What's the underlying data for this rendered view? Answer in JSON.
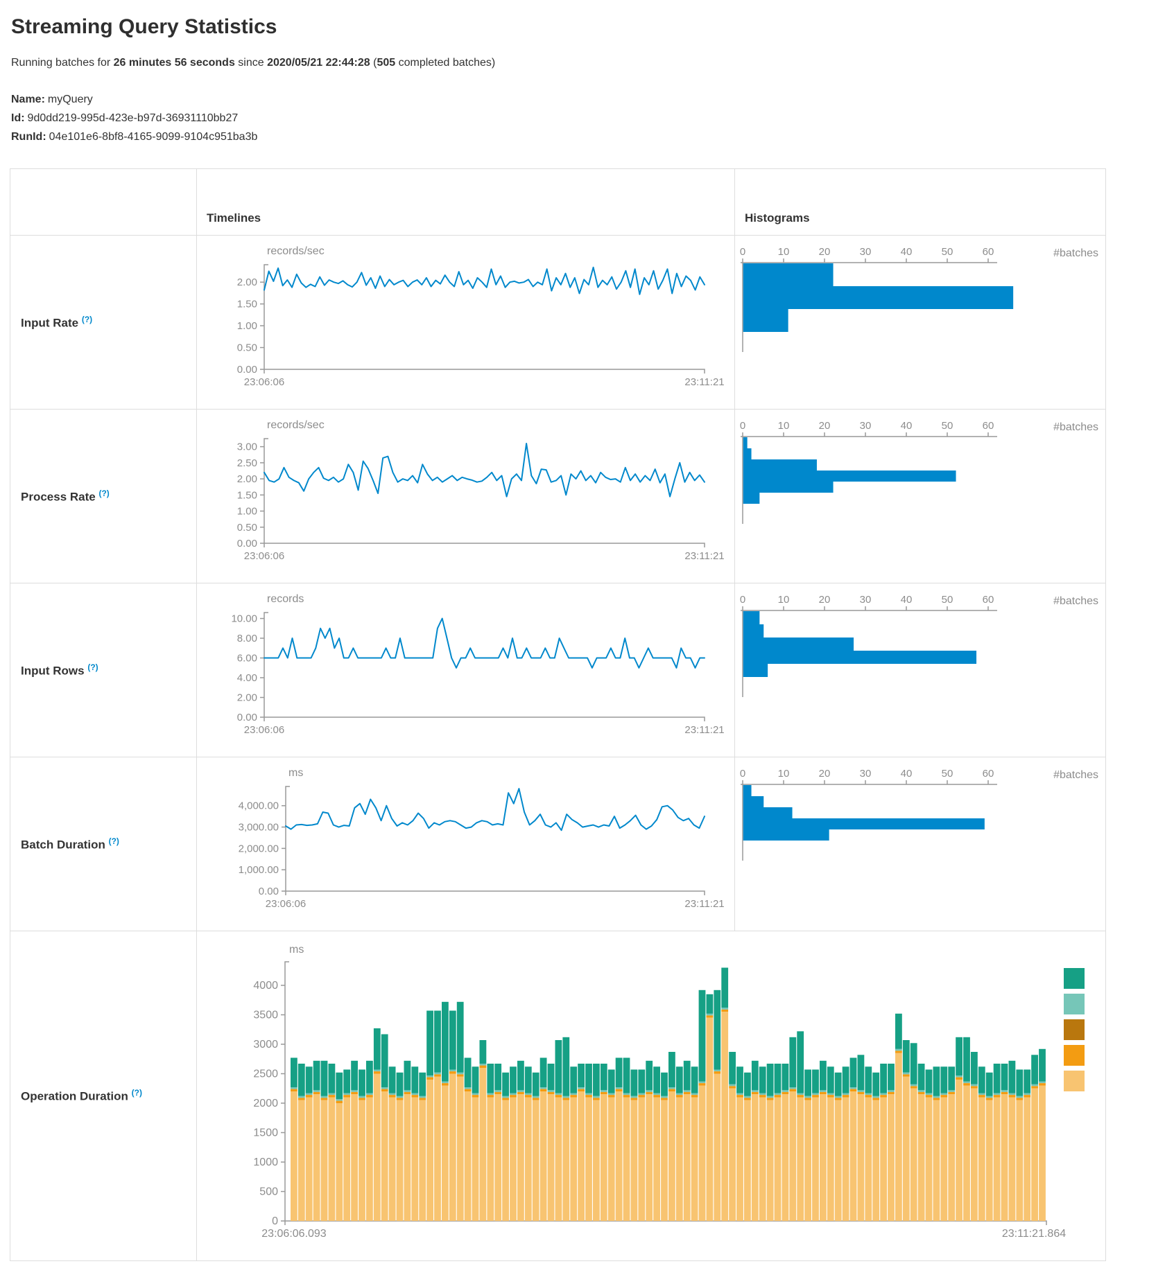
{
  "page": {
    "title": "Streaming Query Statistics",
    "subtitle": {
      "prefix": "Running batches for ",
      "duration": "26 minutes 56 seconds",
      "mid": " since ",
      "start_time": "2020/05/21 22:44:28",
      "paren": " (",
      "completed_batches": "505",
      "suffix": " completed batches)"
    },
    "meta": {
      "name_label": "Name:",
      "name_value": "myQuery",
      "id_label": "Id:",
      "id_value": "9d0dd219-995d-423e-b97d-36931110bb27",
      "runid_label": "RunId:",
      "runid_value": "04e101e6-8bf8-4165-9099-9104c951ba3b"
    }
  },
  "table": {
    "headers": {
      "timelines": "Timelines",
      "histograms": "Histograms"
    },
    "rows": [
      {
        "label": "Input Rate",
        "help": "(?)"
      },
      {
        "label": "Process Rate",
        "help": "(?)"
      },
      {
        "label": "Input Rows",
        "help": "(?)"
      },
      {
        "label": "Batch Duration",
        "help": "(?)"
      },
      {
        "label": "Operation Duration",
        "help": "(?)"
      }
    ]
  },
  "colors": {
    "blue": "#0088cc",
    "axis": "#999999",
    "tick": "#8c8c8c",
    "legend": [
      "#16a085",
      "#76c6b8",
      "#b9770e",
      "#f39c12",
      "#f8c471"
    ]
  },
  "chart_data": [
    {
      "id": "input-rate-timeline",
      "type": "line",
      "ylabel": "records/sec",
      "x_start": "23:06:06",
      "x_end": "23:11:21",
      "ylim": [
        0,
        2.4
      ],
      "yticks": [
        0,
        0.5,
        1,
        1.5,
        2
      ],
      "values": [
        1.82,
        2.25,
        2.02,
        2.32,
        1.92,
        2.05,
        1.88,
        2.18,
        1.98,
        1.88,
        1.95,
        1.9,
        2.12,
        1.93,
        2.05,
        2.0,
        1.97,
        2.03,
        1.94,
        1.89,
        2.0,
        2.22,
        1.93,
        2.1,
        1.86,
        2.14,
        1.9,
        2.06,
        1.94,
        2.0,
        2.04,
        1.9,
        2.0,
        2.05,
        1.94,
        2.1,
        1.9,
        2.04,
        1.96,
        2.16,
        2.0,
        1.9,
        2.24,
        1.94,
        2.04,
        1.86,
        2.1,
        2.0,
        1.88,
        2.3,
        1.94,
        2.14,
        1.88,
        2.0,
        2.02,
        1.98,
        2.0,
        2.06,
        1.9,
        2.0,
        1.94,
        2.3,
        1.8,
        2.1,
        1.94,
        2.2,
        1.88,
        2.1,
        1.74,
        2.06,
        1.94,
        2.34,
        1.88,
        2.04,
        1.94,
        2.12,
        1.84,
        2.0,
        2.26,
        1.88,
        2.3,
        1.72,
        2.1,
        1.94,
        2.26,
        1.84,
        2.04,
        2.3,
        1.74,
        2.2,
        1.9,
        2.14,
        2.04,
        1.82,
        2.12,
        1.94
      ]
    },
    {
      "id": "input-rate-histogram",
      "type": "bar",
      "xlabel": "#batches",
      "xticks": [
        0,
        10,
        20,
        30,
        40,
        50,
        60
      ],
      "values": [
        22,
        66,
        11
      ]
    },
    {
      "id": "process-rate-timeline",
      "type": "line",
      "ylabel": "records/sec",
      "x_start": "23:06:06",
      "x_end": "23:11:21",
      "ylim": [
        0,
        3.25
      ],
      "yticks": [
        0,
        0.5,
        1,
        1.5,
        2,
        2.5,
        3
      ],
      "values": [
        2.2,
        1.95,
        1.9,
        2.0,
        2.35,
        2.05,
        1.95,
        1.88,
        1.62,
        2.0,
        2.2,
        2.35,
        2.02,
        1.95,
        2.05,
        1.9,
        2.0,
        2.45,
        2.2,
        1.65,
        2.55,
        2.32,
        1.95,
        1.55,
        2.65,
        2.7,
        2.2,
        1.9,
        2.0,
        1.95,
        2.1,
        1.88,
        2.45,
        2.15,
        1.95,
        2.05,
        1.9,
        2.0,
        2.1,
        1.95,
        2.05,
        2.0,
        1.96,
        1.9,
        1.93,
        2.05,
        2.2,
        1.95,
        2.1,
        1.45,
        2.0,
        2.15,
        1.95,
        3.1,
        2.1,
        1.85,
        2.3,
        2.28,
        1.9,
        1.95,
        2.1,
        1.5,
        2.15,
        2.0,
        2.25,
        1.95,
        2.1,
        1.88,
        2.2,
        2.05,
        1.98,
        2.0,
        1.9,
        2.35,
        1.95,
        2.15,
        1.9,
        2.1,
        1.95,
        2.3,
        1.88,
        2.15,
        1.45,
        2.0,
        2.5,
        1.9,
        2.2,
        1.95,
        2.12,
        1.9
      ]
    },
    {
      "id": "process-rate-histogram",
      "type": "bar",
      "xlabel": "#batches",
      "xticks": [
        0,
        10,
        20,
        30,
        40,
        50,
        60
      ],
      "values": [
        1,
        2,
        18,
        52,
        22,
        4
      ]
    },
    {
      "id": "input-rows-timeline",
      "type": "line",
      "ylabel": "records",
      "x_start": "23:06:06",
      "x_end": "23:11:21",
      "ylim": [
        0,
        10.6
      ],
      "yticks": [
        0,
        2,
        4,
        6,
        8,
        10
      ],
      "values": [
        6,
        6,
        6,
        6,
        7,
        6,
        8,
        6,
        6,
        6,
        6,
        7,
        9,
        8,
        9,
        7,
        8,
        6,
        6,
        7,
        6,
        6,
        6,
        6,
        6,
        6,
        7,
        6,
        6,
        8,
        6,
        6,
        6,
        6,
        6,
        6,
        6,
        9,
        10,
        8,
        6,
        5,
        6,
        6,
        7,
        6,
        6,
        6,
        6,
        6,
        6,
        7,
        6,
        8,
        6,
        6,
        7,
        6,
        6,
        6,
        7,
        6,
        6,
        8,
        7,
        6,
        6,
        6,
        6,
        6,
        5,
        6,
        6,
        6,
        7,
        6,
        6,
        8,
        6,
        6,
        5,
        6,
        7,
        6,
        6,
        6,
        6,
        6,
        5,
        7,
        6,
        6,
        5,
        6,
        6
      ]
    },
    {
      "id": "input-rows-histogram",
      "type": "bar",
      "xlabel": "#batches",
      "xticks": [
        0,
        10,
        20,
        30,
        40,
        50,
        60
      ],
      "values": [
        4,
        5,
        27,
        57,
        6
      ]
    },
    {
      "id": "batch-duration-timeline",
      "type": "line",
      "ylabel": "ms",
      "x_start": "23:06:06",
      "x_end": "23:11:21",
      "ylim": [
        0,
        4900
      ],
      "yticks": [
        0,
        1000,
        2000,
        3000,
        4000
      ],
      "values": [
        3050,
        2900,
        3100,
        3120,
        3080,
        3100,
        3150,
        3700,
        3650,
        3100,
        3000,
        3080,
        3050,
        3900,
        4100,
        3600,
        4300,
        3900,
        3300,
        4000,
        3400,
        3050,
        3200,
        3100,
        3300,
        3650,
        3400,
        2950,
        3200,
        3100,
        3250,
        3300,
        3250,
        3100,
        2950,
        3000,
        3200,
        3300,
        3250,
        3100,
        3150,
        3100,
        4600,
        4100,
        4800,
        3700,
        3100,
        3300,
        3600,
        3100,
        3000,
        3200,
        2850,
        3600,
        3350,
        3200,
        3000,
        3050,
        3100,
        3000,
        3100,
        3050,
        3500,
        2950,
        3100,
        3300,
        3550,
        3100,
        2900,
        3050,
        3350,
        3950,
        4000,
        3800,
        3450,
        3300,
        3400,
        3100,
        2950,
        3500
      ]
    },
    {
      "id": "batch-duration-histogram",
      "type": "bar",
      "xlabel": "#batches",
      "xticks": [
        0,
        10,
        20,
        30,
        40,
        50,
        60
      ],
      "values": [
        2,
        5,
        12,
        59,
        21
      ]
    },
    {
      "id": "operation-duration-stacked",
      "type": "stacked-bar",
      "ylabel": "ms",
      "x_start": "23:06:06.093",
      "x_end": "23:11:21.864",
      "ylim": [
        0,
        4400
      ],
      "yticks": [
        0,
        500,
        1000,
        1500,
        2000,
        2500,
        3000,
        3500,
        4000
      ],
      "legend_colors": [
        "#16a085",
        "#76c6b8",
        "#b9770e",
        "#f39c12",
        "#f8c471"
      ],
      "series": [
        {
          "name": "segment-bottom",
          "color": "#f8c471",
          "values": [
            2200,
            2050,
            2100,
            2150,
            2050,
            2100,
            2000,
            2100,
            2150,
            2050,
            2100,
            2500,
            2200,
            2100,
            2050,
            2150,
            2100,
            2050,
            2400,
            2450,
            2300,
            2500,
            2450,
            2200,
            2100,
            2600,
            2100,
            2150,
            2050,
            2100,
            2150,
            2100,
            2050,
            2200,
            2150,
            2100,
            2050,
            2100,
            2200,
            2100,
            2050,
            2150,
            2100,
            2200,
            2100,
            2050,
            2100,
            2150,
            2100,
            2050,
            2200,
            2100,
            2150,
            2100,
            2300,
            3450,
            2500,
            3550,
            2250,
            2100,
            2050,
            2150,
            2100,
            2050,
            2100,
            2150,
            2200,
            2100,
            2050,
            2100,
            2150,
            2100,
            2050,
            2100,
            2200,
            2150,
            2100,
            2050,
            2100,
            2150,
            2850,
            2450,
            2250,
            2150,
            2100,
            2050,
            2100,
            2150,
            2400,
            2300,
            2250,
            2100,
            2050,
            2100,
            2150,
            2100,
            2050,
            2100,
            2250,
            2300
          ]
        },
        {
          "name": "segment-orange",
          "color": "#f39c12",
          "constant": 40
        },
        {
          "name": "segment-light-teal",
          "color": "#76c6b8",
          "constant": 30
        },
        {
          "name": "segment-top",
          "color": "#16a085",
          "values": [
            500,
            550,
            450,
            500,
            600,
            500,
            450,
            400,
            500,
            450,
            550,
            700,
            900,
            450,
            400,
            500,
            450,
            400,
            1100,
            1050,
            1350,
            1000,
            1200,
            500,
            450,
            400,
            500,
            450,
            400,
            450,
            500,
            450,
            400,
            500,
            450,
            900,
            1000,
            450,
            400,
            500,
            550,
            450,
            400,
            500,
            600,
            450,
            400,
            500,
            450,
            400,
            600,
            450,
            500,
            450,
            1550,
            330,
            1350,
            680,
            550,
            450,
            400,
            500,
            450,
            550,
            500,
            450,
            850,
            1050,
            450,
            400,
            500,
            450,
            400,
            450,
            500,
            600,
            450,
            400,
            500,
            450,
            600,
            550,
            700,
            450,
            400,
            500,
            450,
            400,
            650,
            750,
            550,
            450,
            400,
            500,
            450,
            550,
            450,
            400,
            500,
            550
          ]
        }
      ]
    }
  ]
}
